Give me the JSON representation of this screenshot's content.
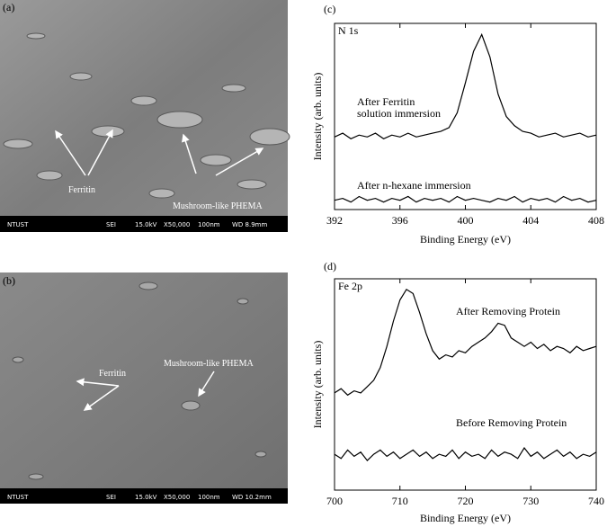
{
  "images": [
    {
      "panel_label": "(a)",
      "annotations": [
        "Ferritin",
        "Mushroom-like PHEMA"
      ],
      "info_bar": [
        "NTUST",
        "SEI",
        "15.0kV",
        "X50,000",
        "100nm",
        "WD 8.9mm"
      ]
    },
    {
      "panel_label": "(b)",
      "annotations": [
        "Ferritin",
        "Mushroom-like PHEMA"
      ],
      "info_bar": [
        "NTUST",
        "SEI",
        "15.0kV",
        "X50,000",
        "100nm",
        "WD 10.2mm"
      ]
    }
  ],
  "chart_data": [
    {
      "type": "line",
      "panel_label": "(c)",
      "title": "N 1s",
      "x_label": "Binding Energy (eV)",
      "y_label": "Intensity (arb. units)",
      "xlim": [
        392,
        408
      ],
      "xticks": [
        392,
        396,
        400,
        404,
        408
      ],
      "ylim": [
        0,
        100
      ],
      "x": [
        392,
        392.5,
        393,
        393.5,
        394,
        394.5,
        395,
        395.5,
        396,
        396.5,
        397,
        397.5,
        398,
        398.5,
        399,
        399.5,
        400,
        400.5,
        401,
        401.5,
        402,
        402.5,
        403,
        403.5,
        404,
        404.5,
        405,
        405.5,
        406,
        406.5,
        407,
        407.5,
        408
      ],
      "series": [
        {
          "name": "After Ferritin solution immersion",
          "color": "#000000",
          "values": [
            39,
            41,
            38,
            40,
            39,
            41,
            38,
            40,
            39,
            41,
            39,
            40,
            41,
            42,
            44,
            52,
            68,
            85,
            94,
            82,
            62,
            50,
            45,
            42,
            41,
            39,
            40,
            41,
            39,
            40,
            41,
            39,
            40
          ]
        },
        {
          "name": "After n-hexane immersion",
          "color": "#000000",
          "values": [
            5,
            6,
            4,
            7,
            5,
            6,
            4,
            6,
            5,
            7,
            4,
            6,
            5,
            6,
            4,
            7,
            5,
            6,
            5,
            4,
            6,
            5,
            7,
            4,
            6,
            5,
            6,
            4,
            7,
            5,
            6,
            4,
            5
          ]
        }
      ]
    },
    {
      "type": "line",
      "panel_label": "(d)",
      "title": "Fe 2p",
      "x_label": "Binding Energy (eV)",
      "y_label": "Intensity (arb. units)",
      "xlim": [
        700,
        740
      ],
      "xticks": [
        700,
        710,
        720,
        730,
        740
      ],
      "ylim": [
        0,
        100
      ],
      "x": [
        700,
        701,
        702,
        703,
        704,
        705,
        706,
        707,
        708,
        709,
        710,
        711,
        712,
        713,
        714,
        715,
        716,
        717,
        718,
        719,
        720,
        721,
        722,
        723,
        724,
        725,
        726,
        727,
        728,
        729,
        730,
        731,
        732,
        733,
        734,
        735,
        736,
        737,
        738,
        739,
        740
      ],
      "series": [
        {
          "name": "After Removing Protein",
          "color": "#000000",
          "values": [
            46,
            48,
            45,
            47,
            46,
            49,
            52,
            58,
            68,
            80,
            90,
            95,
            93,
            84,
            74,
            66,
            62,
            64,
            63,
            66,
            65,
            68,
            70,
            72,
            75,
            79,
            78,
            72,
            70,
            68,
            70,
            67,
            69,
            66,
            68,
            67,
            65,
            68,
            66,
            67,
            68
          ]
        },
        {
          "name": "Before Removing Protein",
          "color": "#000000",
          "values": [
            17,
            15,
            19,
            16,
            18,
            14,
            17,
            19,
            16,
            18,
            15,
            17,
            19,
            16,
            18,
            15,
            17,
            16,
            19,
            15,
            18,
            16,
            17,
            15,
            19,
            16,
            18,
            17,
            15,
            20,
            16,
            18,
            15,
            17,
            19,
            16,
            18,
            15,
            17,
            16,
            18
          ]
        }
      ]
    }
  ]
}
